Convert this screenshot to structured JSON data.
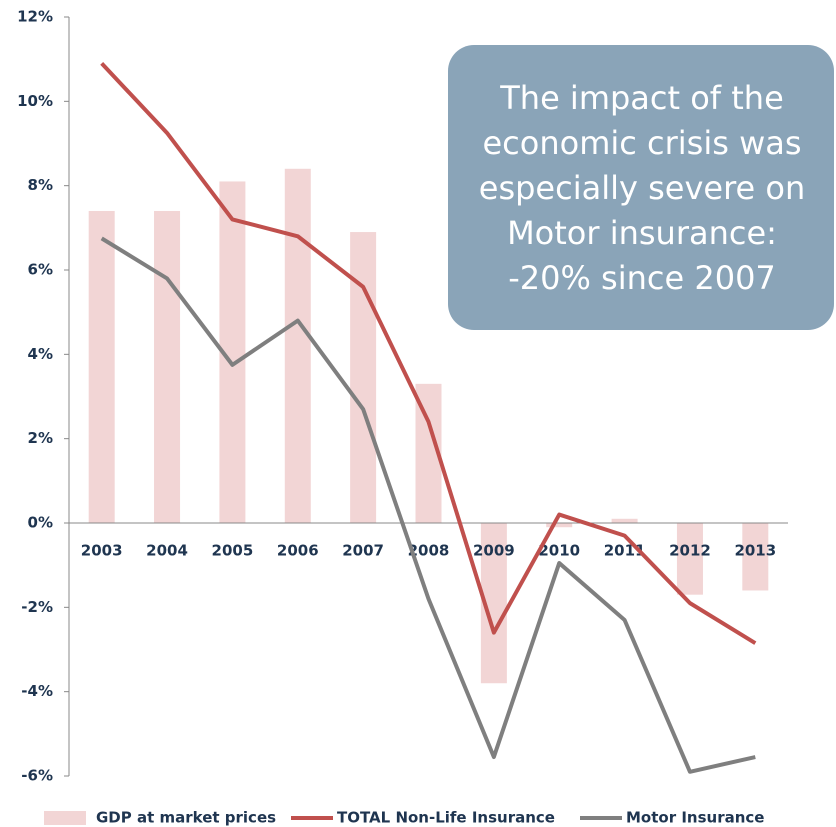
{
  "chart_data": {
    "type": "bar_line",
    "categories": [
      "2003",
      "2004",
      "2005",
      "2006",
      "2007",
      "2008",
      "2009",
      "2010",
      "2011",
      "2012",
      "2013"
    ],
    "series": [
      {
        "name": "GDP at market prices",
        "kind": "bar",
        "color": "#f2d5d5",
        "values": [
          7.4,
          7.4,
          8.1,
          8.4,
          6.9,
          3.3,
          -3.8,
          -0.1,
          0.1,
          -1.7,
          -1.6
        ]
      },
      {
        "name": "TOTAL Non-Life Insurance",
        "kind": "line",
        "color": "#c0504d",
        "values": [
          10.9,
          9.25,
          7.2,
          6.8,
          5.6,
          2.4,
          -2.6,
          0.2,
          -0.3,
          -1.9,
          -2.85
        ]
      },
      {
        "name": "Motor Insurance",
        "kind": "line",
        "color": "#7f7f7f",
        "values": [
          6.75,
          5.8,
          3.75,
          4.8,
          2.7,
          -1.8,
          -5.55,
          -0.95,
          -2.3,
          -5.9,
          -5.55
        ]
      }
    ],
    "ylim": [
      -6,
      12
    ],
    "yticks": [
      {
        "value": -6,
        "label": "-6%"
      },
      {
        "value": -4,
        "label": "-4%"
      },
      {
        "value": -2,
        "label": "-2%"
      },
      {
        "value": 0,
        "label": "0%"
      },
      {
        "value": 2,
        "label": "2%"
      },
      {
        "value": 4,
        "label": "4%"
      },
      {
        "value": 6,
        "label": "6%"
      },
      {
        "value": 8,
        "label": "8%"
      },
      {
        "value": 10,
        "label": "10%"
      },
      {
        "value": 12,
        "label": "12%"
      }
    ],
    "annotation": [
      "The impact of the",
      "economic crisis was",
      "especially severe on",
      "Motor insurance:",
      "-20% since 2007"
    ],
    "legend": "bottom"
  }
}
